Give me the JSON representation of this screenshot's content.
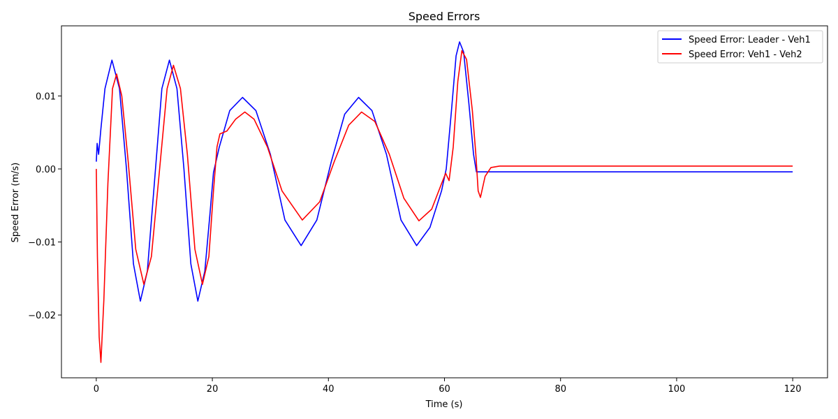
{
  "chart_data": {
    "type": "line",
    "title": "Speed Errors",
    "xlabel": "Time (s)",
    "ylabel": "Speed Error (m/s)",
    "xlim": [
      -6,
      126
    ],
    "ylim": [
      -0.0286,
      0.0196
    ],
    "xticks": [
      0,
      20,
      40,
      60,
      80,
      100,
      120
    ],
    "xtick_labels": [
      "0",
      "20",
      "40",
      "60",
      "80",
      "100",
      "120"
    ],
    "yticks": [
      -0.02,
      -0.01,
      0.0,
      0.01
    ],
    "ytick_labels": [
      "−0.02",
      "−0.01",
      "0.00",
      "0.01"
    ],
    "grid": false,
    "legend_position": "top-right",
    "series": [
      {
        "name": "Speed Error: Leader - Veh1",
        "color": "#0000ff",
        "points": [
          [
            0,
            0.001
          ],
          [
            0.15,
            0.0035
          ],
          [
            0.4,
            0.002
          ],
          [
            0.8,
            0.0055
          ],
          [
            1.5,
            0.011
          ],
          [
            2.7,
            0.0149
          ],
          [
            4.0,
            0.011
          ],
          [
            5.2,
            0.0
          ],
          [
            6.4,
            -0.013
          ],
          [
            7.6,
            -0.0181
          ],
          [
            8.8,
            -0.014
          ],
          [
            10.0,
            -0.002
          ],
          [
            11.3,
            0.011
          ],
          [
            12.6,
            0.0149
          ],
          [
            13.9,
            0.011
          ],
          [
            15.1,
            0.0
          ],
          [
            16.3,
            -0.013
          ],
          [
            17.5,
            -0.0181
          ],
          [
            18.7,
            -0.014
          ],
          [
            19.6,
            -0.006
          ],
          [
            20.2,
            -0.0005
          ],
          [
            21.2,
            0.003
          ],
          [
            23.0,
            0.008
          ],
          [
            25.2,
            0.0098
          ],
          [
            27.5,
            0.008
          ],
          [
            30.0,
            0.002
          ],
          [
            32.5,
            -0.007
          ],
          [
            35.3,
            -0.0105
          ],
          [
            38.0,
            -0.007
          ],
          [
            40.5,
            0.001
          ],
          [
            42.8,
            0.0075
          ],
          [
            45.2,
            0.0098
          ],
          [
            47.5,
            0.008
          ],
          [
            50.0,
            0.002
          ],
          [
            52.5,
            -0.007
          ],
          [
            55.2,
            -0.0105
          ],
          [
            57.5,
            -0.008
          ],
          [
            59.5,
            -0.003
          ],
          [
            60.3,
            0.0
          ],
          [
            61.2,
            0.008
          ],
          [
            62.0,
            0.0155
          ],
          [
            62.6,
            0.0174
          ],
          [
            63.3,
            0.016
          ],
          [
            64.2,
            0.009
          ],
          [
            65.0,
            0.002
          ],
          [
            65.5,
            -0.0004
          ],
          [
            70,
            -0.0004
          ],
          [
            80,
            -0.0004
          ],
          [
            90,
            -0.0004
          ],
          [
            100,
            -0.0004
          ],
          [
            110,
            -0.0004
          ],
          [
            120,
            -0.0004
          ]
        ]
      },
      {
        "name": "Speed Error: Veh1 - Veh2",
        "color": "#ff0000",
        "points": [
          [
            0,
            0.0
          ],
          [
            0.2,
            -0.012
          ],
          [
            0.5,
            -0.023
          ],
          [
            0.8,
            -0.0265
          ],
          [
            1.3,
            -0.018
          ],
          [
            2.0,
            -0.002
          ],
          [
            2.8,
            0.011
          ],
          [
            3.5,
            0.013
          ],
          [
            4.4,
            0.01
          ],
          [
            5.5,
            0.001
          ],
          [
            6.8,
            -0.011
          ],
          [
            8.2,
            -0.0158
          ],
          [
            9.5,
            -0.012
          ],
          [
            10.8,
            -0.001
          ],
          [
            12.2,
            0.011
          ],
          [
            13.3,
            0.0142
          ],
          [
            14.5,
            0.011
          ],
          [
            15.7,
            0.002
          ],
          [
            17.0,
            -0.011
          ],
          [
            18.3,
            -0.0158
          ],
          [
            19.4,
            -0.012
          ],
          [
            20.2,
            -0.003
          ],
          [
            20.8,
            0.003
          ],
          [
            21.3,
            0.0048
          ],
          [
            22.5,
            0.0052
          ],
          [
            24.0,
            0.0068
          ],
          [
            25.6,
            0.0078
          ],
          [
            27.2,
            0.0068
          ],
          [
            29.5,
            0.003
          ],
          [
            32.0,
            -0.003
          ],
          [
            35.5,
            -0.007
          ],
          [
            38.5,
            -0.0045
          ],
          [
            41.0,
            0.001
          ],
          [
            43.5,
            0.006
          ],
          [
            45.7,
            0.0078
          ],
          [
            48.0,
            0.0065
          ],
          [
            50.5,
            0.002
          ],
          [
            53.0,
            -0.004
          ],
          [
            55.6,
            -0.0071
          ],
          [
            57.8,
            -0.0055
          ],
          [
            59.5,
            -0.002
          ],
          [
            60.2,
            -0.0006
          ],
          [
            60.8,
            -0.0016
          ],
          [
            61.5,
            0.003
          ],
          [
            62.3,
            0.012
          ],
          [
            63.0,
            0.0162
          ],
          [
            63.8,
            0.015
          ],
          [
            64.8,
            0.008
          ],
          [
            65.4,
            0.002
          ],
          [
            65.8,
            -0.003
          ],
          [
            66.2,
            -0.0039
          ],
          [
            67.0,
            -0.001
          ],
          [
            68.0,
            0.0002
          ],
          [
            69.5,
            0.0004
          ],
          [
            80,
            0.0004
          ],
          [
            90,
            0.0004
          ],
          [
            100,
            0.0004
          ],
          [
            110,
            0.0004
          ],
          [
            120,
            0.0004
          ]
        ]
      }
    ]
  }
}
